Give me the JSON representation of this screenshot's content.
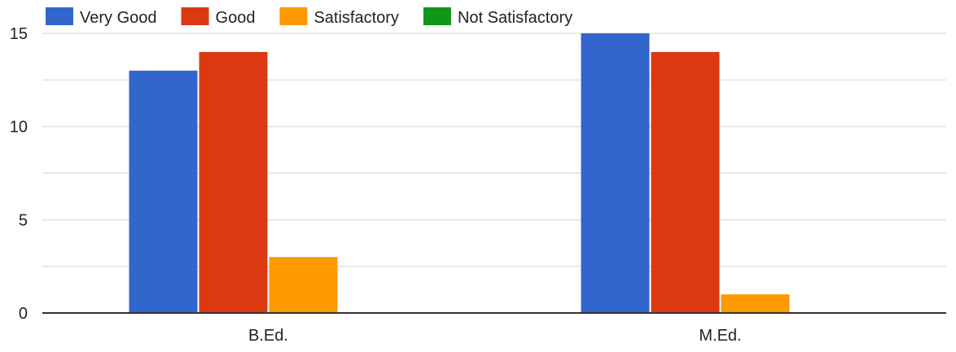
{
  "chart_data": {
    "type": "bar",
    "title": "",
    "xlabel": "",
    "ylabel": "",
    "categories": [
      "B.Ed.",
      "M.Ed."
    ],
    "series": [
      {
        "name": "Very Good",
        "color": "#3366cc",
        "values": [
          13,
          15
        ]
      },
      {
        "name": "Good",
        "color": "#dc3912",
        "values": [
          14,
          14
        ]
      },
      {
        "name": "Satisfactory",
        "color": "#ff9900",
        "values": [
          3,
          1
        ]
      },
      {
        "name": "Not Satisfactory",
        "color": "#109618",
        "values": [
          0,
          0
        ]
      }
    ],
    "ylim": [
      0,
      15
    ],
    "yticks": [
      "0",
      "5",
      "10",
      "15"
    ],
    "grid": true,
    "legend_position": "top-left"
  }
}
